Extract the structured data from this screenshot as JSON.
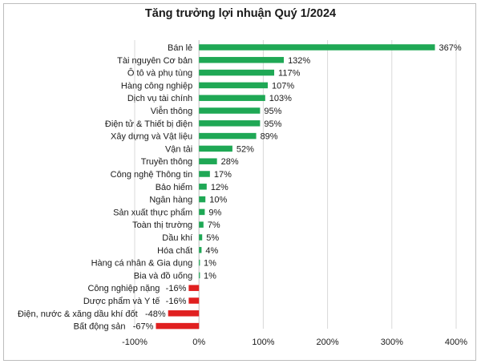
{
  "chart_data": {
    "type": "bar",
    "orientation": "horizontal",
    "title": "Tăng trưởng lợi nhuận Quý 1/2024",
    "categories": [
      "Bán lẻ",
      "Tài nguyên Cơ bản",
      "Ô tô và phụ tùng",
      "Hàng công nghiệp",
      "Dịch vụ tài chính",
      "Viễn thông",
      "Điện tử & Thiết bị điện",
      "Xây dựng và Vật liệu",
      "Vận tải",
      "Truyền thông",
      "Công nghệ Thông tin",
      "Bảo hiểm",
      "Ngân hàng",
      "Sản xuất thực phẩm",
      "Toàn thị trường",
      "Dầu khí",
      "Hóa chất",
      "Hàng cá nhân & Gia dụng",
      "Bia và đồ uống",
      "Công nghiệp nặng",
      "Dược phẩm và Y tế",
      "Điện, nước & xăng dầu khí đốt",
      "Bất động sản"
    ],
    "values": [
      367,
      132,
      117,
      107,
      103,
      95,
      95,
      89,
      52,
      28,
      17,
      12,
      10,
      9,
      7,
      5,
      4,
      1,
      1,
      -16,
      -16,
      -48,
      -67
    ],
    "value_labels": [
      "367%",
      "132%",
      "117%",
      "107%",
      "103%",
      "95%",
      "95%",
      "89%",
      "52%",
      "28%",
      "17%",
      "12%",
      "10%",
      "9%",
      "7%",
      "5%",
      "4%",
      "1%",
      "1%",
      "-16%",
      "-16%",
      "-48%",
      "-67%"
    ],
    "xlim": [
      -100,
      400
    ],
    "xticks": [
      -100,
      0,
      100,
      200,
      300,
      400
    ],
    "xtick_labels": [
      "-100%",
      "0%",
      "100%",
      "200%",
      "300%",
      "400%"
    ],
    "grid": "vertical",
    "xlabel": "",
    "ylabel": "",
    "colors": {
      "positive": "#1fa855",
      "negative": "#e02020",
      "grid": "#d9d9d9",
      "axis": "#bfbfbf"
    }
  }
}
